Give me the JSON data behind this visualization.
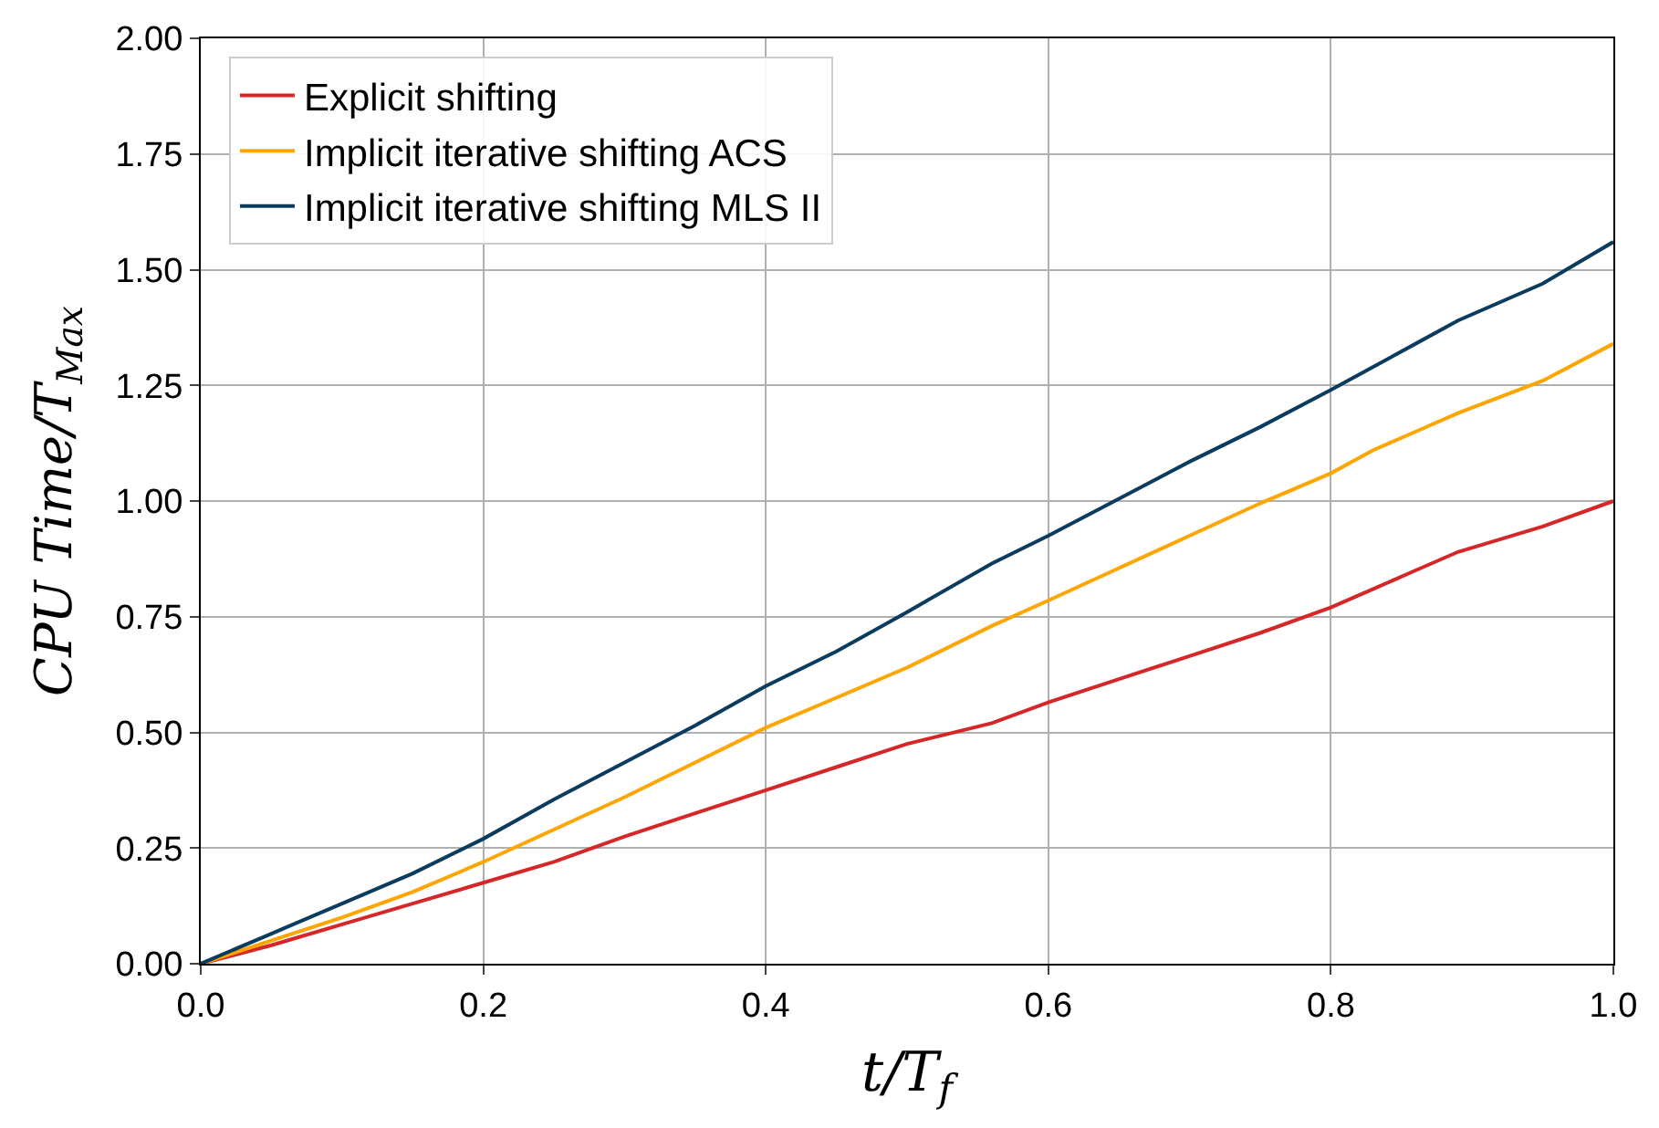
{
  "chart_data": {
    "type": "line",
    "xlabel": "t/T$_{f}$",
    "ylabel": "CPU Time/T$_{Max}$",
    "x": [
      0,
      0.05,
      0.1,
      0.15,
      0.2,
      0.25,
      0.3,
      0.35,
      0.4,
      0.45,
      0.5,
      0.56,
      0.6,
      0.65,
      0.7,
      0.75,
      0.8,
      0.83,
      0.86,
      0.89,
      0.95,
      1.0
    ],
    "series": [
      {
        "name": "Explicit shifting",
        "color": "#d62728",
        "values": [
          0,
          0.04,
          0.085,
          0.13,
          0.175,
          0.22,
          0.275,
          0.325,
          0.375,
          0.425,
          0.475,
          0.52,
          0.565,
          0.615,
          0.665,
          0.715,
          0.77,
          0.81,
          0.85,
          0.89,
          0.945,
          1.0
        ]
      },
      {
        "name": "Implicit iterative shifting ACS",
        "color": "#ffa500",
        "values": [
          0,
          0.05,
          0.1,
          0.155,
          0.22,
          0.29,
          0.36,
          0.435,
          0.51,
          0.575,
          0.64,
          0.73,
          0.785,
          0.855,
          0.925,
          0.995,
          1.06,
          1.11,
          1.15,
          1.19,
          1.26,
          1.34
        ]
      },
      {
        "name": "Implicit iterative shifting MLS II",
        "color": "#0b3c5d",
        "values": [
          0,
          0.065,
          0.13,
          0.195,
          0.27,
          0.355,
          0.435,
          0.515,
          0.6,
          0.675,
          0.76,
          0.865,
          0.925,
          1.005,
          1.085,
          1.16,
          1.24,
          1.29,
          1.34,
          1.39,
          1.47,
          1.56
        ]
      }
    ],
    "xlim": [
      0,
      1
    ],
    "ylim": [
      0,
      2
    ],
    "xticks": [
      {
        "value": 0,
        "label": "0.0"
      },
      0.2,
      0.4,
      0.6,
      0.8,
      {
        "value": 1,
        "label": "1.0"
      }
    ],
    "yticks": [
      {
        "value": 0,
        "label": "0.00"
      },
      0.25,
      {
        "value": 0.5,
        "label": "0.50"
      },
      0.75,
      {
        "value": 1,
        "label": "1.00"
      },
      1.25,
      {
        "value": 1.5,
        "label": "1.50"
      },
      1.75,
      {
        "value": 2,
        "label": "2.00"
      }
    ],
    "grid": true,
    "legend": "top left",
    "marker": "none",
    "line_style": "solid"
  }
}
